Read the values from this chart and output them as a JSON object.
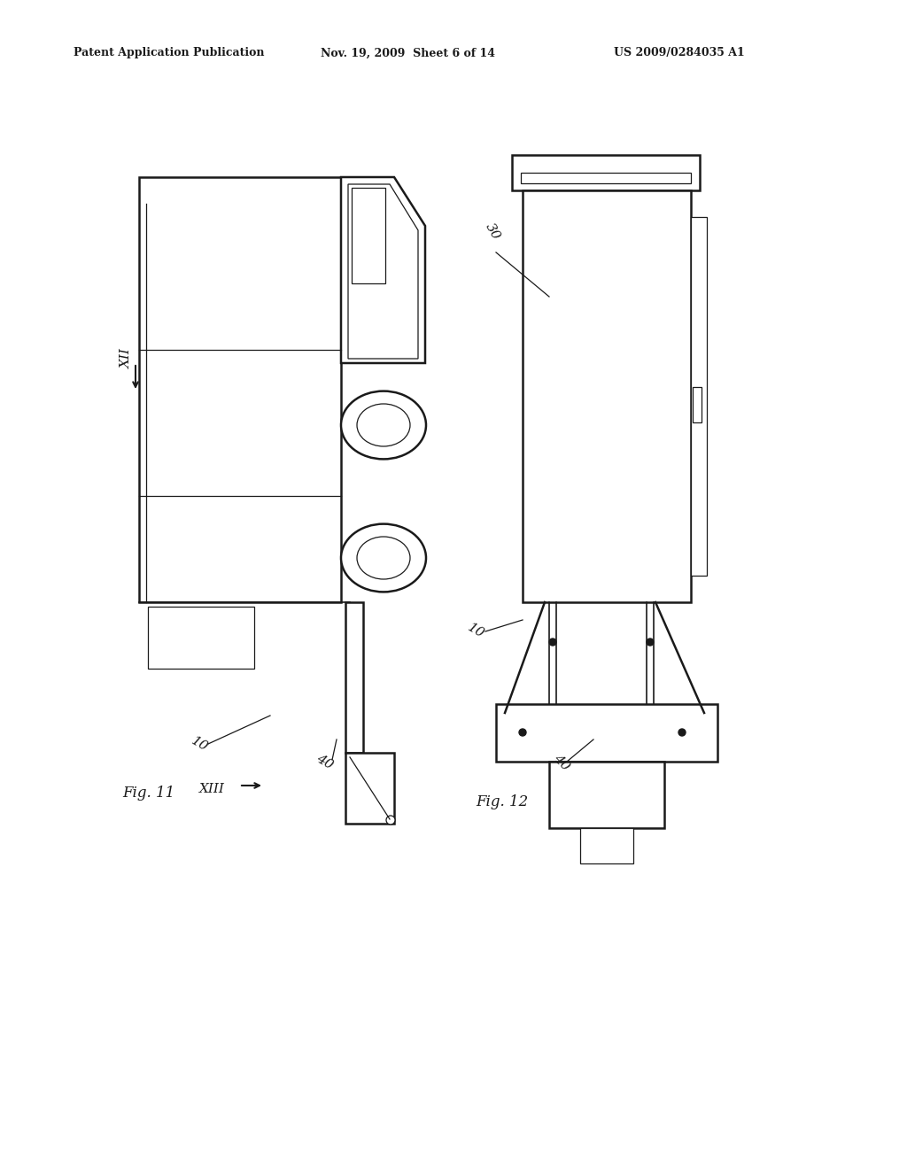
{
  "background_color": "#ffffff",
  "header_left": "Patent Application Publication",
  "header_mid": "Nov. 19, 2009  Sheet 6 of 14",
  "header_right": "US 2009/0284035 A1",
  "fig11_label": "Fig. 11",
  "fig12_label": "Fig. 12",
  "label_10_fig11": "10",
  "label_40_fig11": "40",
  "label_XII": "XII",
  "label_XIII": "XIII",
  "label_10_fig12": "10",
  "label_30_fig12": "30",
  "label_40_fig12": "40"
}
